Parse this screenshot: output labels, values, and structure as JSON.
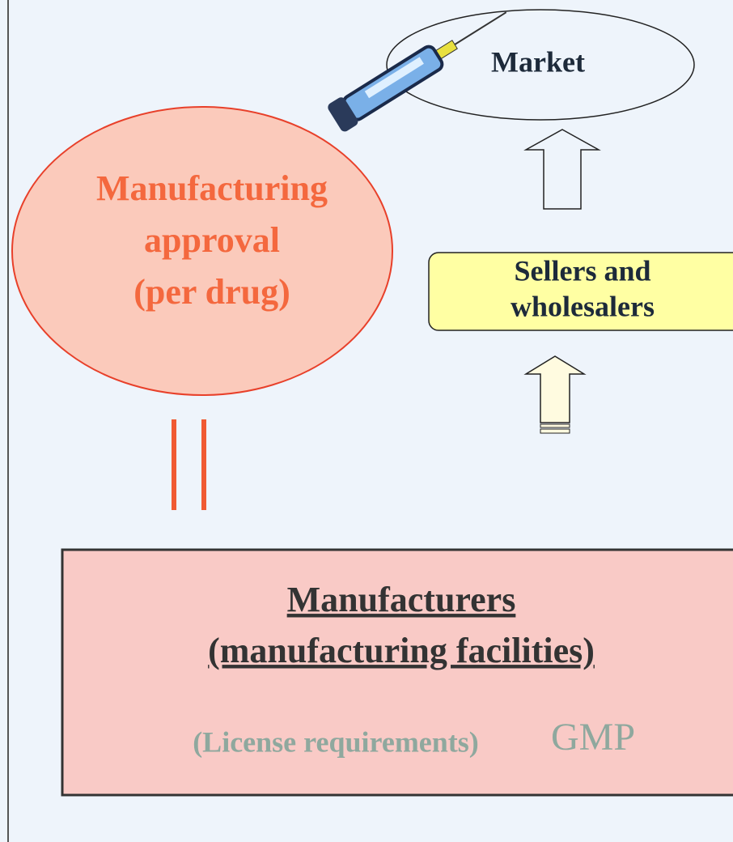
{
  "nodes": {
    "market": {
      "label": "Market"
    },
    "approval": {
      "lines": [
        "Manufacturing",
        "approval",
        "(per drug)"
      ]
    },
    "sellers": {
      "lines": [
        "Sellers and",
        "wholesalers"
      ]
    },
    "manufacturers": {
      "title_lines": [
        "Manufacturers",
        "(manufacturing facilities)"
      ],
      "requirements": "(License requirements)",
      "standard": "GMP"
    }
  }
}
